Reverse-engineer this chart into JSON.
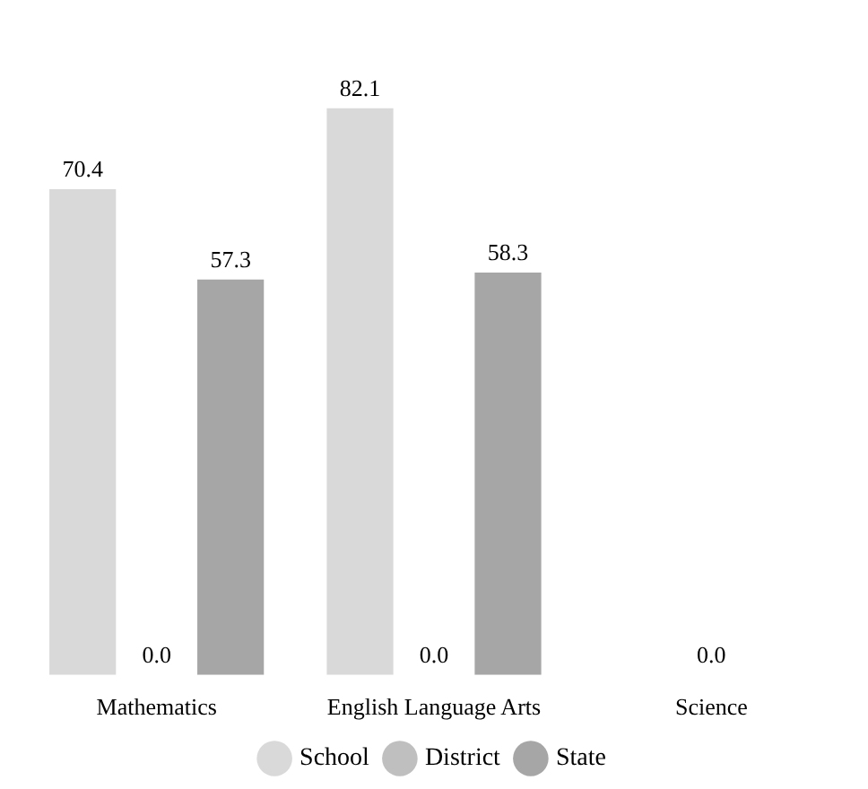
{
  "chart_data": {
    "type": "bar",
    "categories": [
      "Mathematics",
      "English Language Arts",
      "Science"
    ],
    "series": [
      {
        "name": "School",
        "color": "#d9d9d9",
        "values": [
          70.4,
          82.1,
          null
        ],
        "value_labels": [
          "70.4",
          "82.1",
          null
        ]
      },
      {
        "name": "District",
        "color": "#bfbfbf",
        "values": [
          0,
          0,
          0
        ],
        "value_labels": [
          "0.0",
          "0.0",
          "0.0"
        ]
      },
      {
        "name": "State",
        "color": "#a6a6a6",
        "values": [
          57.3,
          58.3,
          null
        ],
        "value_labels": [
          "57.3",
          "58.3",
          null
        ]
      }
    ],
    "legend": "bottom",
    "grid": false
  }
}
